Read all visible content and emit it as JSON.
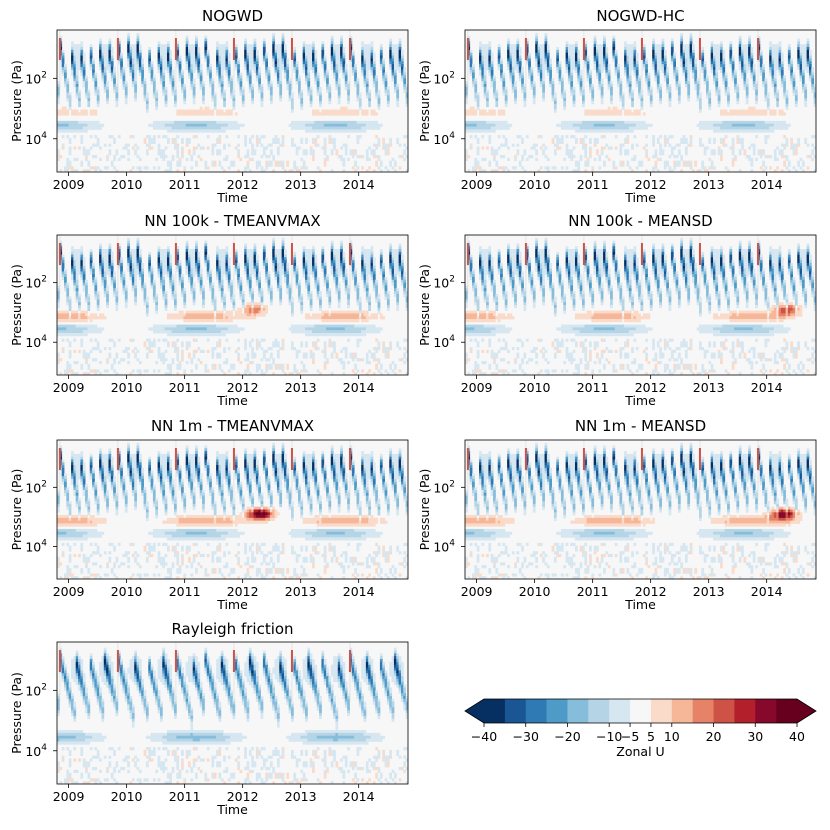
{
  "chart_data": [
    {
      "type": "heatmap",
      "title": "NOGWD",
      "xlabel": "Time",
      "ylabel": "Pressure (Pa)",
      "x_ticks": [
        "2009",
        "2010",
        "2011",
        "2012",
        "2013",
        "2014"
      ],
      "y_ticks": [
        {
          "base": "10",
          "exp": "2",
          "value": 100
        },
        {
          "base": "10",
          "exp": "4",
          "value": 10000
        }
      ],
      "x_range": [
        2008.8,
        2014.85
      ],
      "y_range_log10": [
        0.4,
        5.1
      ],
      "regime": "weak-lower",
      "note": "Zonal U (m/s) time-height section with periodic westward (blue) descending bands"
    },
    {
      "type": "heatmap",
      "title": "NOGWD-HC",
      "xlabel": "Time",
      "ylabel": "Pressure (Pa)",
      "x_ticks": [
        "2009",
        "2010",
        "2011",
        "2012",
        "2013",
        "2014"
      ],
      "y_ticks": [
        {
          "base": "10",
          "exp": "2",
          "value": 100
        },
        {
          "base": "10",
          "exp": "4",
          "value": 10000
        }
      ],
      "x_range": [
        2008.8,
        2014.85
      ],
      "y_range_log10": [
        0.4,
        5.1
      ],
      "regime": "weak-lower"
    },
    {
      "type": "heatmap",
      "title": "NN 100k - TMEANVMAX",
      "xlabel": "Time",
      "ylabel": "Pressure (Pa)",
      "x_ticks": [
        "2009",
        "2010",
        "2011",
        "2012",
        "2013",
        "2014"
      ],
      "y_ticks": [
        {
          "base": "10",
          "exp": "2",
          "value": 100
        },
        {
          "base": "10",
          "exp": "4",
          "value": 10000
        }
      ],
      "x_range": [
        2008.8,
        2014.85
      ],
      "y_range_log10": [
        0.4,
        5.1
      ],
      "regime": "moderate-2012"
    },
    {
      "type": "heatmap",
      "title": "NN 100k - MEANSD",
      "xlabel": "Time",
      "ylabel": "Pressure (Pa)",
      "x_ticks": [
        "2009",
        "2010",
        "2011",
        "2012",
        "2013",
        "2014"
      ],
      "y_ticks": [
        {
          "base": "10",
          "exp": "2",
          "value": 100
        },
        {
          "base": "10",
          "exp": "4",
          "value": 10000
        }
      ],
      "x_range": [
        2008.8,
        2014.85
      ],
      "y_range_log10": [
        0.4,
        5.1
      ],
      "regime": "moderate-2014"
    },
    {
      "type": "heatmap",
      "title": "NN 1m - TMEANVMAX",
      "xlabel": "Time",
      "ylabel": "Pressure (Pa)",
      "x_ticks": [
        "2009",
        "2010",
        "2011",
        "2012",
        "2013",
        "2014"
      ],
      "y_ticks": [
        {
          "base": "10",
          "exp": "2",
          "value": 100
        },
        {
          "base": "10",
          "exp": "4",
          "value": 10000
        }
      ],
      "x_range": [
        2008.8,
        2014.85
      ],
      "y_range_log10": [
        0.4,
        5.1
      ],
      "regime": "strong-2012"
    },
    {
      "type": "heatmap",
      "title": "NN 1m - MEANSD",
      "xlabel": "Time",
      "ylabel": "Pressure (Pa)",
      "x_ticks": [
        "2009",
        "2010",
        "2011",
        "2012",
        "2013",
        "2014"
      ],
      "y_ticks": [
        {
          "base": "10",
          "exp": "2",
          "value": 100
        },
        {
          "base": "10",
          "exp": "4",
          "value": 10000
        }
      ],
      "x_range": [
        2008.8,
        2014.85
      ],
      "y_range_log10": [
        0.4,
        5.1
      ],
      "regime": "strong-2014"
    },
    {
      "type": "heatmap",
      "title": "Rayleigh friction",
      "xlabel": "Time",
      "ylabel": "Pressure (Pa)",
      "x_ticks": [
        "2009",
        "2010",
        "2011",
        "2012",
        "2013",
        "2014"
      ],
      "y_ticks": [
        {
          "base": "10",
          "exp": "2",
          "value": 100
        },
        {
          "base": "10",
          "exp": "4",
          "value": 10000
        }
      ],
      "x_range": [
        2008.8,
        2014.85
      ],
      "y_range_log10": [
        0.4,
        5.1
      ],
      "regime": "rayleigh"
    }
  ],
  "colorbar": {
    "label": "Zonal U",
    "levels": [
      -40,
      -35,
      -30,
      -25,
      -20,
      -15,
      -10,
      -5,
      5,
      10,
      15,
      20,
      25,
      30,
      35,
      40
    ],
    "ticks": [
      "−40",
      "−30",
      "−20",
      "−10",
      "−5",
      "5",
      "10",
      "20",
      "30",
      "40"
    ],
    "tick_values": [
      -40,
      -30,
      -20,
      -10,
      -5,
      5,
      10,
      20,
      30,
      40
    ],
    "extend": "both",
    "colors": [
      "#053061",
      "#1a5694",
      "#2f79b5",
      "#4f9bc7",
      "#86bdda",
      "#b5d5e7",
      "#d6e7f1",
      "#f7f7f7",
      "#fadbca",
      "#f6b799",
      "#e58267",
      "#cf5246",
      "#b3202c",
      "#86082a",
      "#67001f"
    ],
    "under_color": "#053061",
    "over_color": "#67001f"
  }
}
